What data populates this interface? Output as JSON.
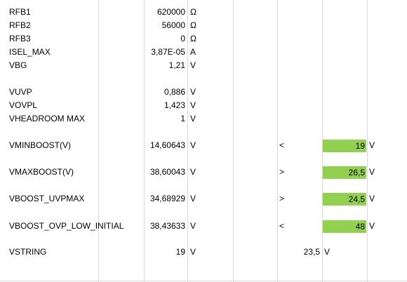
{
  "rows": [
    {
      "label": "RFB1",
      "value": "620000",
      "unit": "Ω"
    },
    {
      "label": "RFB2",
      "value": "56000",
      "unit": "Ω"
    },
    {
      "label": "RFB3",
      "value": "0",
      "unit": "Ω"
    },
    {
      "label": "ISEL_MAX",
      "value": "3,87E-05",
      "unit": "A"
    },
    {
      "label": "VBG",
      "value": "1,21",
      "unit": "V"
    },
    {
      "label": "VUVP",
      "value": "0,886",
      "unit": "V"
    },
    {
      "label": "VOVPL",
      "value": "1,423",
      "unit": "V"
    },
    {
      "label": "VHEADROOM MAX",
      "value": "1",
      "unit": "V"
    },
    {
      "label": "VMINBOOST(V)",
      "value": "14,60643",
      "unit": "V",
      "op": "<",
      "limit": "19",
      "limit_unit": "V"
    },
    {
      "label": "VMAXBOOST(V)",
      "value": "38,60043",
      "unit": "V",
      "op": ">",
      "limit": "26,5",
      "limit_unit": "V"
    },
    {
      "label": "VBOOST_UVPMAX",
      "value": "34,68929",
      "unit": "V",
      "op": ">",
      "limit": "24,5",
      "limit_unit": "V"
    },
    {
      "label": "VBOOST_OVP_LOW_INITIAL",
      "value": "38,43633",
      "unit": "V",
      "op": "<",
      "limit": "48",
      "limit_unit": "V"
    },
    {
      "label": "VSTRING",
      "value": "19",
      "unit": "V",
      "extra_value": "23,5",
      "extra_unit": "V"
    }
  ],
  "colors": {
    "limit_fill": "#92d050",
    "gridline": "#d9d9d9"
  }
}
